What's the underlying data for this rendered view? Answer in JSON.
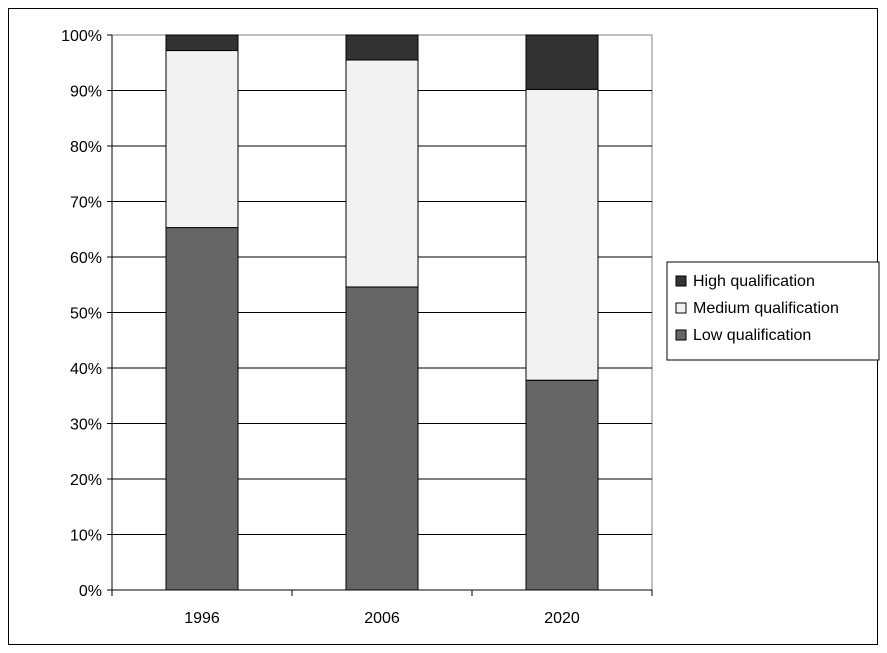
{
  "chart_data": {
    "type": "bar",
    "stacked": true,
    "percent": true,
    "categories": [
      "1996",
      "2006",
      "2020"
    ],
    "series": [
      {
        "name": "Low qualification",
        "color": "#666666",
        "values": [
          65.3,
          54.6,
          37.8
        ]
      },
      {
        "name": "Medium qualification",
        "color": "#f2f2f2",
        "values": [
          31.9,
          40.9,
          52.4
        ]
      },
      {
        "name": "High qualification",
        "color": "#333333",
        "values": [
          2.8,
          4.5,
          9.8
        ]
      }
    ],
    "yticks": [
      "0%",
      "10%",
      "20%",
      "30%",
      "40%",
      "50%",
      "60%",
      "70%",
      "80%",
      "90%",
      "100%"
    ],
    "ylim": [
      0,
      100
    ],
    "grid": true,
    "legend": {
      "position": "right",
      "entries": [
        "High qualification",
        "Medium qualification",
        "Low qualification"
      ],
      "colors": [
        "#333333",
        "#f2f2f2",
        "#666666"
      ]
    }
  }
}
